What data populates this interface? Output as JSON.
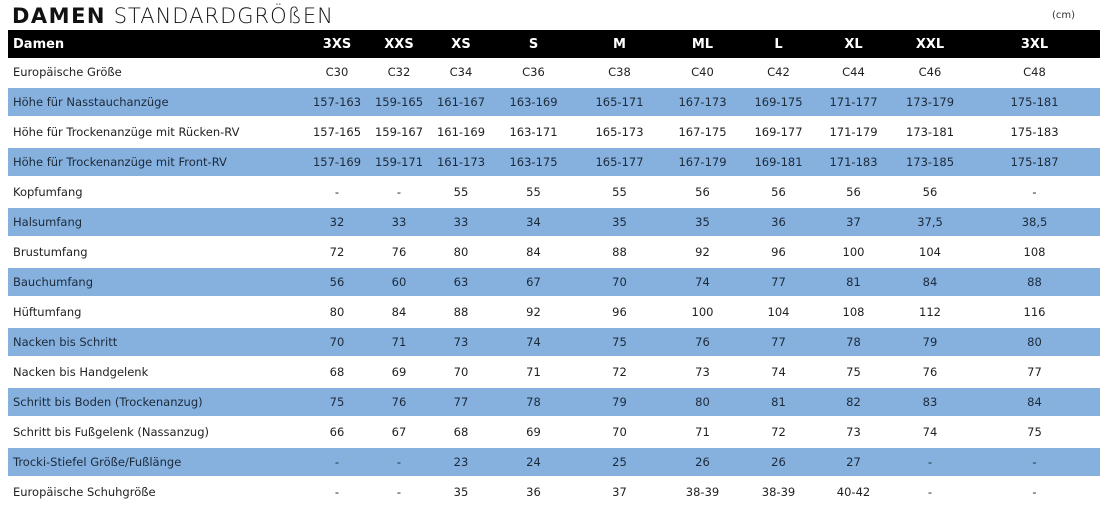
{
  "title": {
    "bold": "DAMEN",
    "light": "STANDARDGRÖßEN"
  },
  "unit": "(cm)",
  "colors": {
    "header_bg": "#000000",
    "stripe": "#86b1df"
  },
  "header": [
    "Damen",
    "3XS",
    "XXS",
    "XS",
    "S",
    "M",
    "ML",
    "L",
    "XL",
    "XXL",
    "3XL"
  ],
  "rows": [
    {
      "label": "Europäische Größe",
      "values": [
        "C30",
        "C32",
        "C34",
        "C36",
        "C38",
        "C40",
        "C42",
        "C44",
        "C46",
        "C48"
      ]
    },
    {
      "label": "Höhe für Nasstauchanzüge",
      "values": [
        "157-163",
        "159-165",
        "161-167",
        "163-169",
        "165-171",
        "167-173",
        "169-175",
        "171-177",
        "173-179",
        "175-181"
      ]
    },
    {
      "label": "Höhe für Trockenanzüge mit Rücken-RV",
      "values": [
        "157-165",
        "159-167",
        "161-169",
        "163-171",
        "165-173",
        "167-175",
        "169-177",
        "171-179",
        "173-181",
        "175-183"
      ]
    },
    {
      "label": "Höhe für Trockenanzüge mit Front-RV",
      "values": [
        "157-169",
        "159-171",
        "161-173",
        "163-175",
        "165-177",
        "167-179",
        "169-181",
        "171-183",
        "173-185",
        "175-187"
      ]
    },
    {
      "label": "Kopfumfang",
      "values": [
        "-",
        "-",
        "55",
        "55",
        "55",
        "56",
        "56",
        "56",
        "56",
        "-"
      ]
    },
    {
      "label": "Halsumfang",
      "values": [
        "32",
        "33",
        "33",
        "34",
        "35",
        "35",
        "36",
        "37",
        "37,5",
        "38,5"
      ]
    },
    {
      "label": "Brustumfang",
      "values": [
        "72",
        "76",
        "80",
        "84",
        "88",
        "92",
        "96",
        "100",
        "104",
        "108"
      ]
    },
    {
      "label": "Bauchumfang",
      "values": [
        "56",
        "60",
        "63",
        "67",
        "70",
        "74",
        "77",
        "81",
        "84",
        "88"
      ]
    },
    {
      "label": "Hüftumfang",
      "values": [
        "80",
        "84",
        "88",
        "92",
        "96",
        "100",
        "104",
        "108",
        "112",
        "116"
      ]
    },
    {
      "label": "Nacken bis Schritt",
      "values": [
        "70",
        "71",
        "73",
        "74",
        "75",
        "76",
        "77",
        "78",
        "79",
        "80"
      ]
    },
    {
      "label": "Nacken bis Handgelenk",
      "values": [
        "68",
        "69",
        "70",
        "71",
        "72",
        "73",
        "74",
        "75",
        "76",
        "77"
      ]
    },
    {
      "label": "Schritt bis Boden (Trockenanzug)",
      "values": [
        "75",
        "76",
        "77",
        "78",
        "79",
        "80",
        "81",
        "82",
        "83",
        "84"
      ]
    },
    {
      "label": "Schritt bis Fußgelenk (Nassanzug)",
      "values": [
        "66",
        "67",
        "68",
        "69",
        "70",
        "71",
        "72",
        "73",
        "74",
        "75"
      ]
    },
    {
      "label": "Trocki-Stiefel Größe/Fußlänge",
      "values": [
        "-",
        "-",
        "23",
        "24",
        "25",
        "26",
        "26",
        "27",
        "-",
        "-"
      ]
    },
    {
      "label": "Europäische Schuhgröße",
      "values": [
        "-",
        "-",
        "35",
        "36",
        "37",
        "38-39",
        "38-39",
        "40-42",
        "-",
        "-"
      ]
    }
  ]
}
